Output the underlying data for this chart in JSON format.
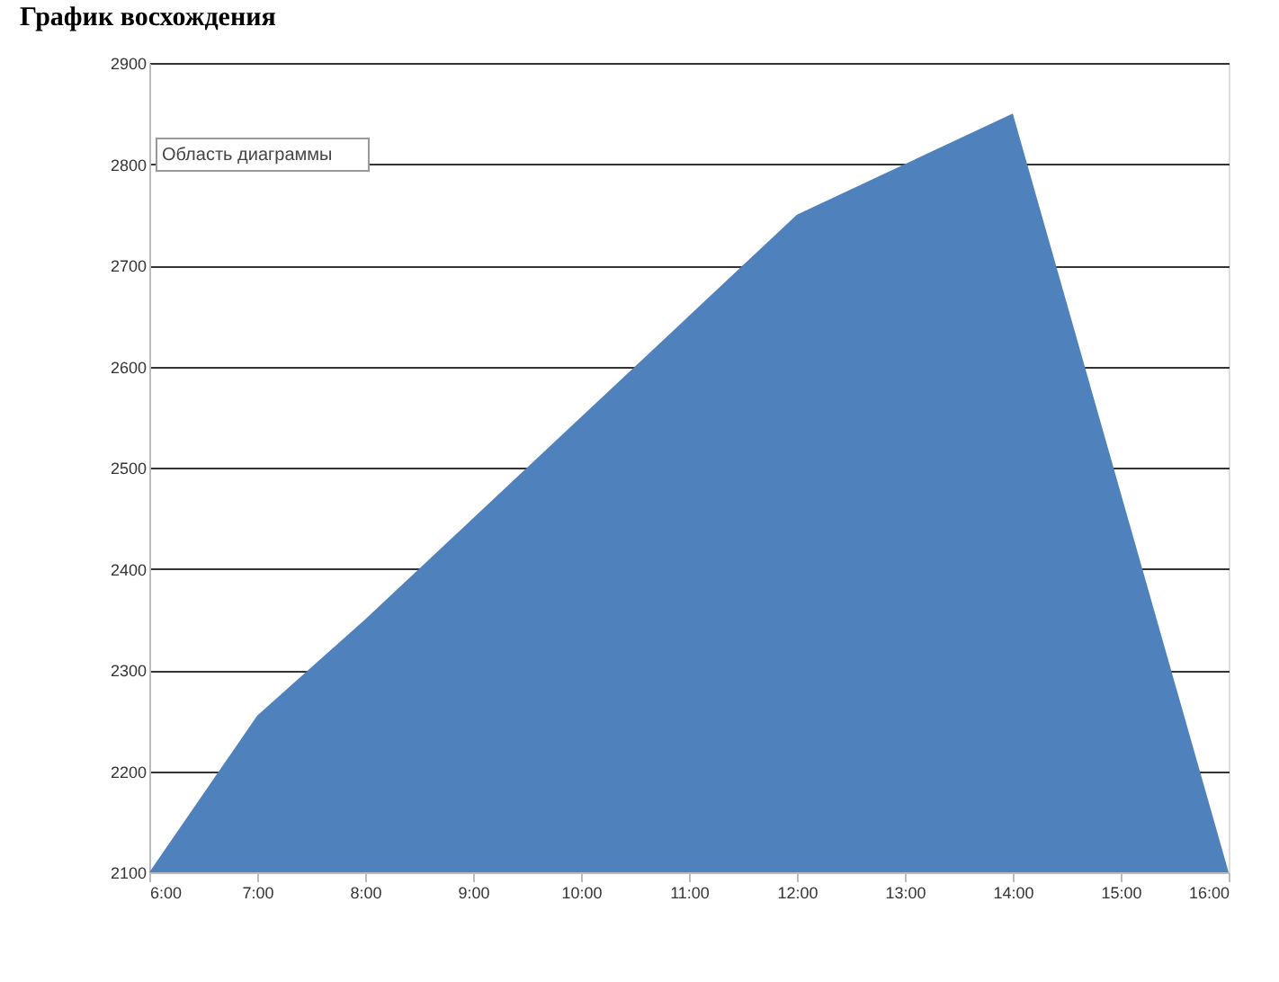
{
  "chart_data": {
    "type": "area",
    "title": "График восхождения",
    "categories": [
      "6:00",
      "7:00",
      "8:00",
      "9:00",
      "10:00",
      "11:00",
      "12:00",
      "13:00",
      "14:00",
      "15:00",
      "16:00"
    ],
    "values": [
      2100,
      2255,
      2350,
      2450,
      2550,
      2650,
      2750,
      2800,
      2850,
      2475,
      2100
    ],
    "color": "#4f81bd",
    "ylim": [
      2100,
      2900
    ],
    "yticks": [
      2100,
      2200,
      2300,
      2400,
      2500,
      2600,
      2700,
      2800,
      2900
    ],
    "grid": "y",
    "annotations": [
      "Область диаграммы"
    ]
  }
}
